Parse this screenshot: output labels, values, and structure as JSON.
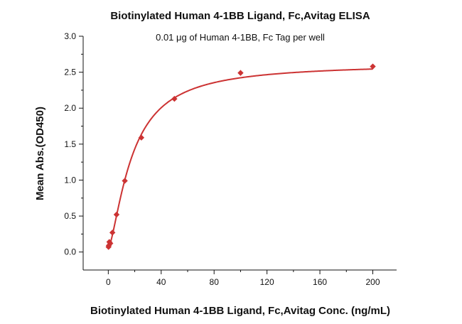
{
  "chart_data": {
    "type": "scatter",
    "title": "Biotinylated Human 4-1BB Ligand, Fc,Avitag ELISA",
    "subtitle": "0.01 μg of Human 4-1BB, Fc Tag per well",
    "xlabel": "Biotinylated Human 4-1BB Ligand, Fc,Avitag Conc. (ng/mL)",
    "ylabel": "Mean Abs.(OD450)",
    "xlim": [
      -19,
      218
    ],
    "ylim": [
      -0.25,
      3.0
    ],
    "xticks": [
      0,
      40,
      80,
      120,
      160,
      200
    ],
    "yticks": [
      0.0,
      0.5,
      1.0,
      1.5,
      2.0,
      2.5,
      3.0
    ],
    "grid": false,
    "marker_color": "#cc3333",
    "curve_color": "#cc3333",
    "series": [
      {
        "x": [
          0.195,
          0.39,
          0.78,
          1.56,
          3.125,
          6.25,
          12.5,
          25,
          50,
          100,
          200
        ],
        "y": [
          0.07,
          0.09,
          0.14,
          0.12,
          0.27,
          0.52,
          0.99,
          1.59,
          2.13,
          2.49,
          2.58
        ]
      }
    ],
    "fit_curve": {
      "type": "4PL",
      "bottom": 0.05,
      "top": 2.62,
      "ec50": 18.0,
      "hill": 1.45
    }
  }
}
